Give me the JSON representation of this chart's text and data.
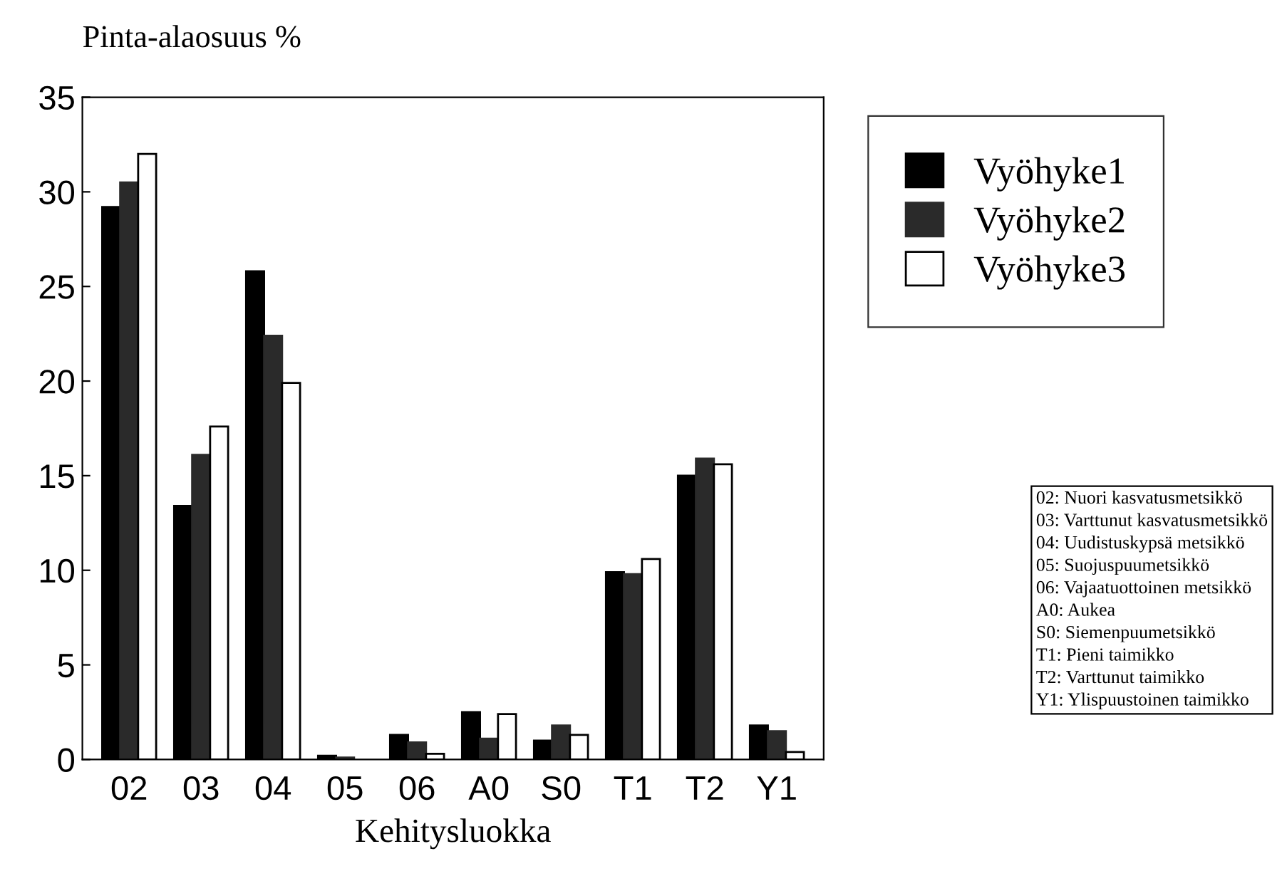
{
  "chart_data": {
    "type": "bar",
    "ylabel": "Pinta-alaosuus %",
    "xlabel": "Kehitysluokka",
    "categories": [
      "02",
      "03",
      "04",
      "05",
      "06",
      "A0",
      "S0",
      "T1",
      "T2",
      "Y1"
    ],
    "series": [
      {
        "name": "Vyöhyke1",
        "color": "#000000",
        "values": [
          29.2,
          13.4,
          25.8,
          0.2,
          1.3,
          2.5,
          1.0,
          9.9,
          15.0,
          1.8
        ]
      },
      {
        "name": "Vyöhyke2",
        "color": "#2a2a2a",
        "values": [
          30.5,
          16.1,
          22.4,
          0.1,
          0.9,
          1.1,
          1.8,
          9.8,
          15.9,
          1.5
        ]
      },
      {
        "name": "Vyöhyke3",
        "color": "#ffffff",
        "values": [
          32.0,
          17.6,
          19.9,
          0.0,
          0.3,
          2.4,
          1.3,
          10.6,
          15.6,
          0.4
        ]
      }
    ],
    "ylim": [
      0,
      35
    ],
    "yticks": [
      0,
      5,
      10,
      15,
      20,
      25,
      30,
      35
    ],
    "grid": false,
    "legend": "top right",
    "annotations": [
      "02: Nuori kasvatusmetsikkö\n03: Varttunut kasvatusmetsikkö\n04: Uudistuskypsä metsikkö\n05: Suojuspuumetsikkö\n06: Vajaatuottoinen metsikkö\nA0: Aukea\nS0: Siemenpuumetsikkö\nT1: Pieni taimikko\nT2: Varttunut taimikko\nY1: Ylispuustoinen taimikko"
    ]
  }
}
